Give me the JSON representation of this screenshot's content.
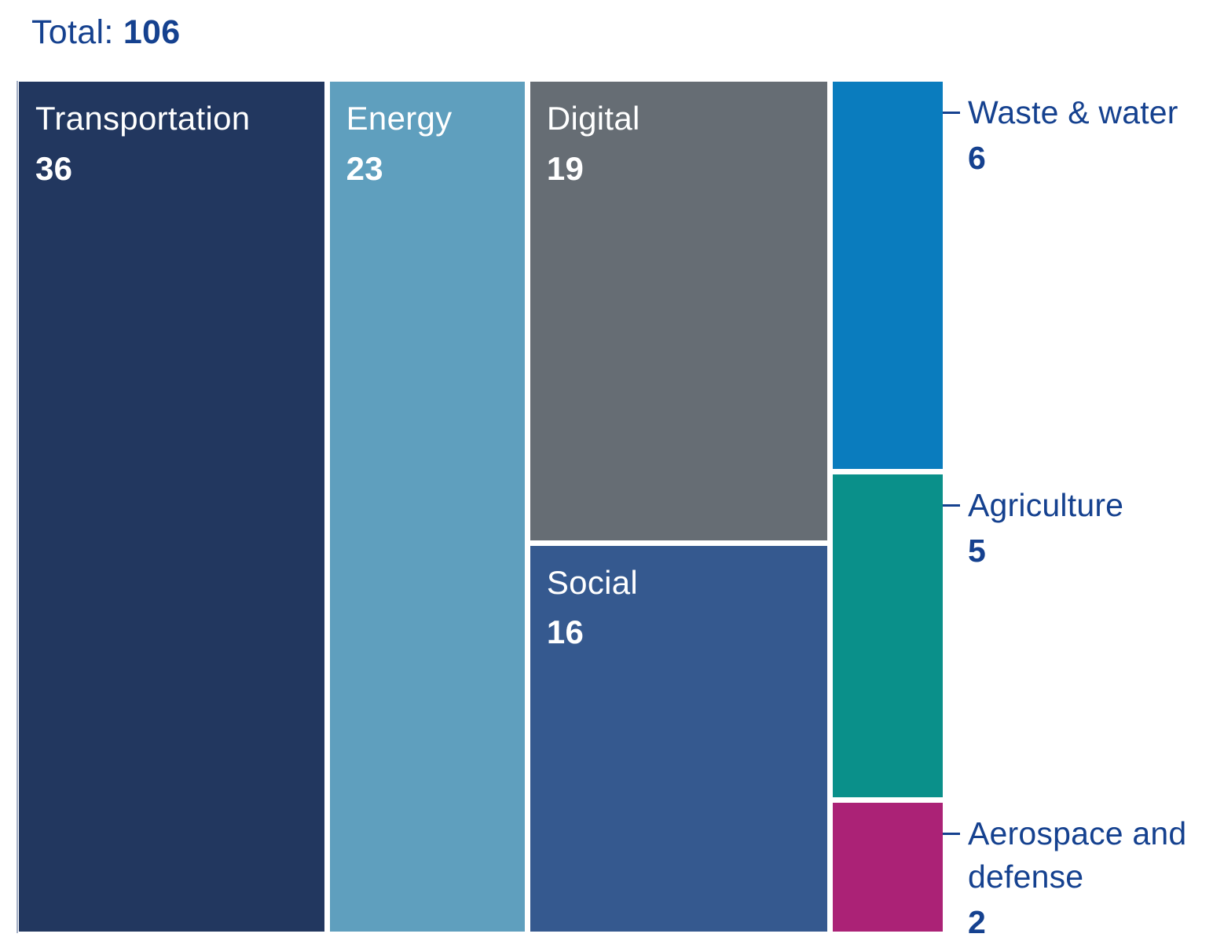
{
  "title": {
    "prefix": "Total:",
    "value": "106"
  },
  "colors": {
    "background": "#ffffff",
    "title_text": "#15418f",
    "cell_label_text": "#ffffff",
    "outside_label_text": "#15418f",
    "callout_line": "#15418f",
    "axis_line": "#a4b0c6",
    "gap": "#ffffff"
  },
  "chart_data": {
    "type": "treemap",
    "title": "Total: 106",
    "total_label": "Total: 106",
    "total": 106,
    "legend_position": "none",
    "grid": false,
    "layout": "vertical-columns, values left-to-right descending, white 7px gaps",
    "columns": [
      {
        "cells": [
          {
            "label": "Transportation",
            "value": 36,
            "color": "#22375f",
            "label_placement": "inside"
          }
        ]
      },
      {
        "cells": [
          {
            "label": "Energy",
            "value": 23,
            "color": "#5f9fbe",
            "label_placement": "inside"
          }
        ]
      },
      {
        "cells": [
          {
            "label": "Digital",
            "value": 19,
            "color": "#666d74",
            "label_placement": "inside"
          },
          {
            "label": "Social",
            "value": 16,
            "color": "#35598f",
            "label_placement": "inside"
          }
        ]
      },
      {
        "cells": [
          {
            "label": "Waste & water",
            "value": 6,
            "color": "#0a7cbe",
            "label_placement": "outside"
          },
          {
            "label": "Agriculture",
            "value": 5,
            "color": "#0a908a",
            "label_placement": "outside"
          },
          {
            "label": "Aerospace and defense",
            "value": 2,
            "color": "#ab2276",
            "label_placement": "outside"
          }
        ]
      }
    ]
  }
}
